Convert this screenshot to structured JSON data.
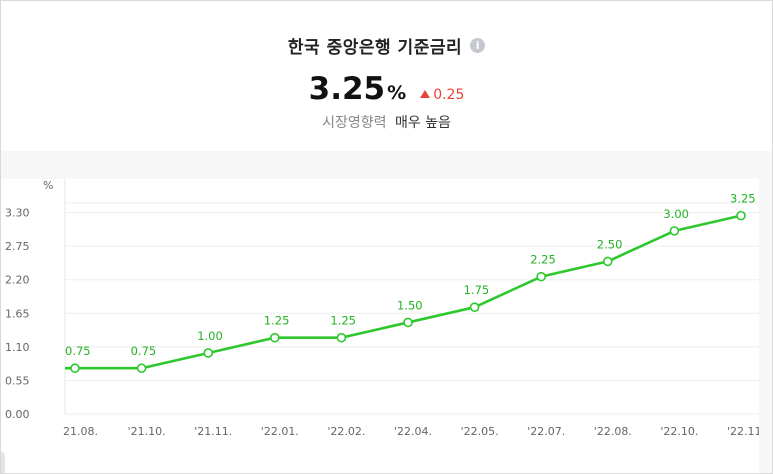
{
  "header": {
    "title": "한국 중앙은행 기준금리",
    "info_icon": "info-icon",
    "rate": "3.25",
    "rate_unit": "%",
    "change": "0.25",
    "change_icon": "up-triangle-icon",
    "impact_label": "시장영향력",
    "impact_value": "매우 높음"
  },
  "colors": {
    "line": "#2ec82e",
    "label": "#23b223",
    "change": "#e8443a"
  },
  "chart_data": {
    "type": "line",
    "y_unit_label": "%",
    "categories": [
      "'21.08.",
      "'21.10.",
      "'21.11.",
      "'22.01.",
      "'22.02.",
      "'22.04.",
      "'22.05.",
      "'22.07.",
      "'22.08.",
      "'22.10.",
      "'22.11."
    ],
    "tick_texts": [
      "21.08.",
      "'21.10.",
      "'21.11.",
      "'22.01.",
      "'22.02.",
      "'22.04.",
      "'22.05.",
      "'22.07.",
      "'22.08.",
      "'22.10.",
      "'22.11."
    ],
    "values": [
      0.75,
      0.75,
      1.0,
      1.25,
      1.25,
      1.5,
      1.75,
      2.25,
      2.5,
      3.0,
      3.25
    ],
    "value_labels": [
      "0.75",
      "0.75",
      "1.00",
      "1.25",
      "1.25",
      "1.50",
      "1.75",
      "2.25",
      "2.50",
      "3.00",
      "3.25"
    ],
    "yticks": [
      0.0,
      0.55,
      1.1,
      1.65,
      2.2,
      2.75,
      3.3
    ],
    "ytick_labels": [
      "0.00",
      "0.55",
      "1.10",
      "1.65",
      "2.20",
      "2.75",
      "3.30"
    ],
    "ylim": [
      0,
      3.85
    ],
    "grid": true
  }
}
